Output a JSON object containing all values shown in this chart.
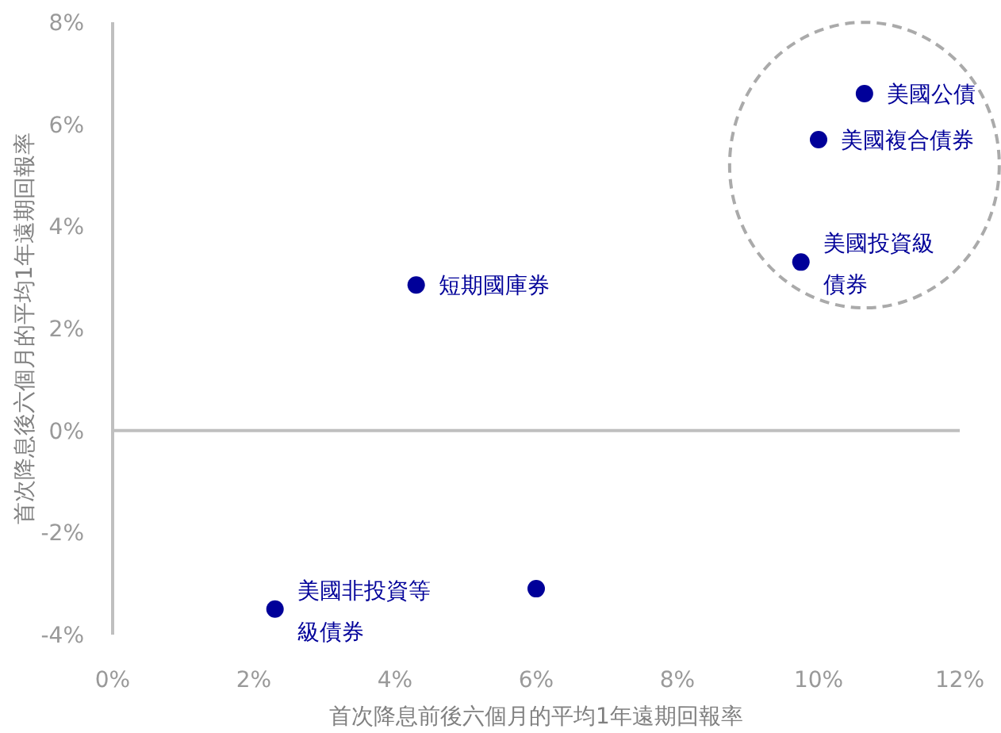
{
  "chart_data": {
    "type": "scatter",
    "xlabel": "首次降息前後六個月的平均1年遠期回報率",
    "ylabel": "首次降息後六個月的平均1年遠期回報率",
    "x": [
      10.65,
      10.0,
      9.75,
      4.3,
      2.3,
      6.0
    ],
    "series": [
      {
        "color": "#000099",
        "values": [
          6.6,
          5.7,
          3.3,
          2.85,
          -3.5,
          -3.1
        ]
      }
    ],
    "marker": "circle",
    "annotations": [
      {
        "text": "美國公債",
        "x": 10.65,
        "y": 6.6
      },
      {
        "text": "美國複合債券",
        "x": 10.0,
        "y": 5.7
      },
      {
        "text": "美國投資級債券",
        "x": 9.75,
        "y": 3.3
      },
      {
        "text": "短期國庫券",
        "x": 4.3,
        "y": 2.85
      },
      {
        "text": "美國非投資等級債券",
        "x": 2.3,
        "y": -3.5
      }
    ],
    "xlim": [
      0,
      12
    ],
    "ylim": [
      -4,
      8
    ],
    "xticks": [
      {
        "value": 0,
        "label": "0%"
      },
      {
        "value": 2,
        "label": "2%"
      },
      {
        "value": 4,
        "label": "4%"
      },
      {
        "value": 6,
        "label": "6%"
      },
      {
        "value": 8,
        "label": "8%"
      },
      {
        "value": 10,
        "label": "10%"
      },
      {
        "value": 12,
        "label": "12%"
      }
    ],
    "yticks": [
      {
        "value": -4,
        "label": "-4%"
      },
      {
        "value": -2,
        "label": "-2%"
      },
      {
        "value": 0,
        "label": "0%"
      },
      {
        "value": 2,
        "label": "2%"
      },
      {
        "value": 4,
        "label": "4%"
      },
      {
        "value": 6,
        "label": "6%"
      },
      {
        "value": 8,
        "label": "8%"
      }
    ],
    "ref_lines": [
      {
        "axis": "y",
        "value": 0,
        "color": "#bfbfbf"
      }
    ],
    "grid": false
  }
}
